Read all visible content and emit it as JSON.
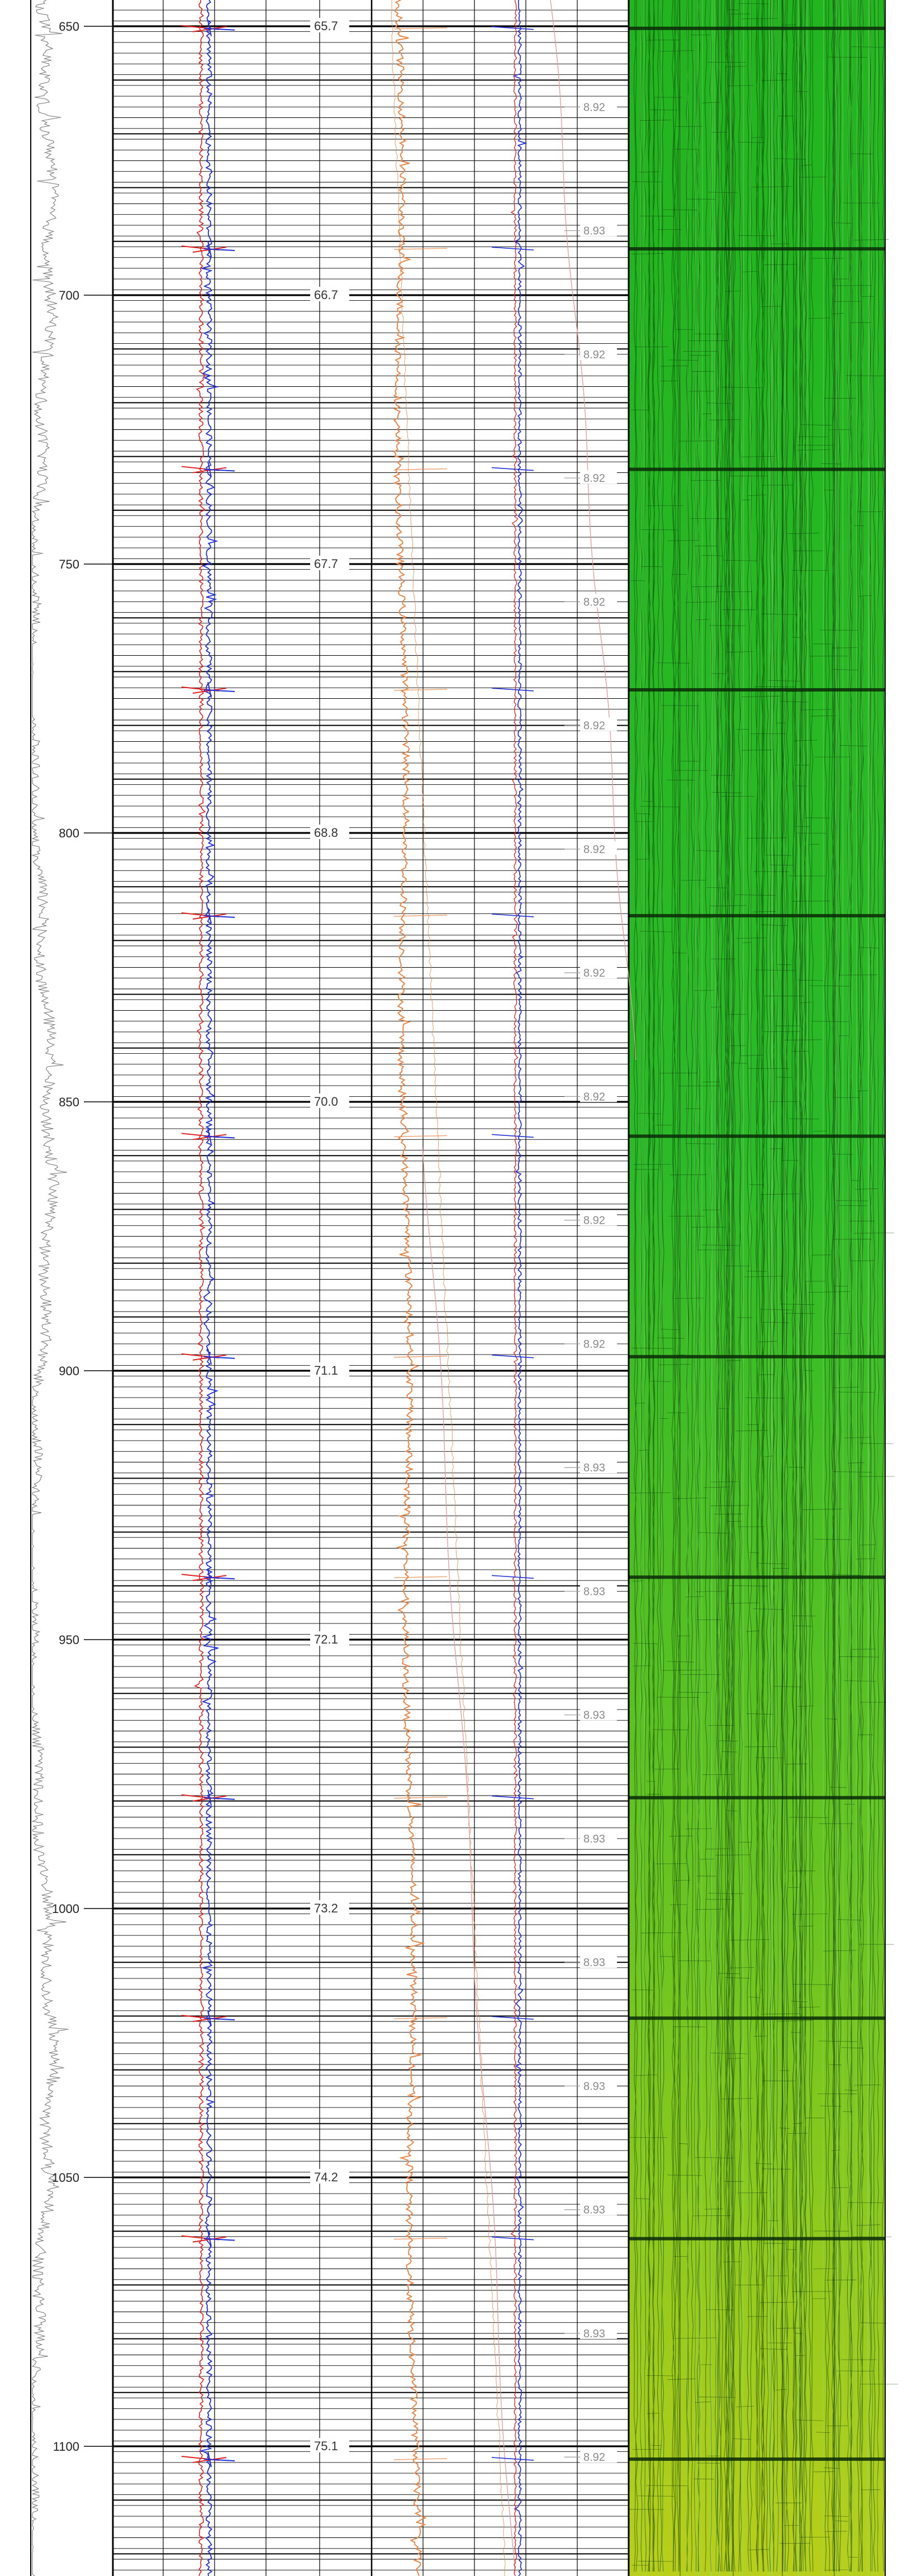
{
  "chart_data": {
    "type": "line",
    "title": "",
    "depth_ticks": [
      650,
      700,
      750,
      800,
      850,
      900,
      950,
      1000,
      1050,
      1100
    ],
    "depth_range": [
      645,
      1125
    ],
    "track2_scale_ticks": [
      {
        "depth": 650,
        "label": "65.7"
      },
      {
        "depth": 700,
        "label": "66.7"
      },
      {
        "depth": 750,
        "label": "67.7"
      },
      {
        "depth": 800,
        "label": "68.8"
      },
      {
        "depth": 850,
        "label": "70.0"
      },
      {
        "depth": 900,
        "label": "71.1"
      },
      {
        "depth": 950,
        "label": "72.1"
      },
      {
        "depth": 1000,
        "label": "73.2"
      },
      {
        "depth": 1050,
        "label": "74.2"
      },
      {
        "depth": 1100,
        "label": "75.1"
      }
    ],
    "track4_value_labels": [
      {
        "depth": 665,
        "label": "8.92"
      },
      {
        "depth": 688,
        "label": "8.93"
      },
      {
        "depth": 711,
        "label": "8.92"
      },
      {
        "depth": 734,
        "label": "8.92"
      },
      {
        "depth": 757,
        "label": "8.92"
      },
      {
        "depth": 780,
        "label": "8.92"
      },
      {
        "depth": 803,
        "label": "8.92"
      },
      {
        "depth": 826,
        "label": "8.92"
      },
      {
        "depth": 849,
        "label": "8.92"
      },
      {
        "depth": 872,
        "label": "8.92"
      },
      {
        "depth": 895,
        "label": "8.92"
      },
      {
        "depth": 918,
        "label": "8.93"
      },
      {
        "depth": 941,
        "label": "8.93"
      },
      {
        "depth": 964,
        "label": "8.93"
      },
      {
        "depth": 987,
        "label": "8.93"
      },
      {
        "depth": 1010,
        "label": "8.93"
      },
      {
        "depth": 1033,
        "label": "8.93"
      },
      {
        "depth": 1056,
        "label": "8.93"
      },
      {
        "depth": 1079,
        "label": "8.93"
      },
      {
        "depth": 1102,
        "label": "8.92"
      }
    ],
    "joint_marker_depths": [
      656,
      697,
      738,
      779,
      821,
      862,
      903,
      944,
      985,
      1026,
      1067,
      1108
    ],
    "grid": true,
    "colors": {
      "grid": "#000000",
      "red_curve": "#e02020",
      "blue_curve": "#1f2fd6",
      "orange_curve": "#e8874a",
      "pink_curve": "#e59a9a",
      "image_green": "#2fb52a",
      "image_yellow": "#c8d21e",
      "image_cyan": "#3fc6a0",
      "gr_curve": "#777777"
    }
  }
}
